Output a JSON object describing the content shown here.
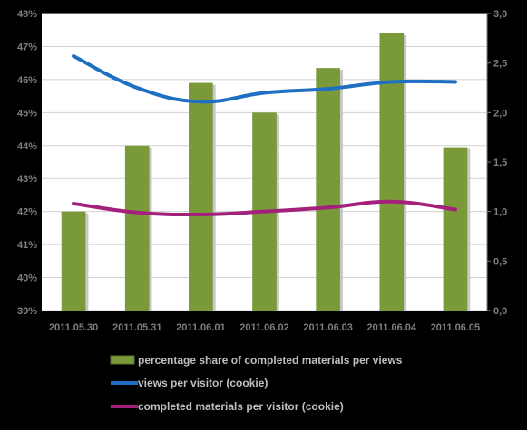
{
  "chart_data": {
    "type": "bar",
    "categories": [
      "2011.05.30",
      "2011.05.31",
      "2011.06.01",
      "2011.06.02",
      "2011.06.03",
      "2011.06.04",
      "2011.06.05"
    ],
    "left_axis": {
      "ylim": [
        39,
        48
      ],
      "ticks": [
        39,
        40,
        41,
        42,
        43,
        44,
        45,
        46,
        47,
        48
      ],
      "tick_labels": [
        "39%",
        "40%",
        "41%",
        "42%",
        "43%",
        "44%",
        "45%",
        "46%",
        "47%",
        "48%"
      ]
    },
    "right_axis": {
      "ylim": [
        0,
        3
      ],
      "ticks": [
        0,
        0.5,
        1,
        1.5,
        2,
        2.5,
        3
      ],
      "tick_labels": [
        "0,0",
        "0,5",
        "1,0",
        "1,5",
        "2,0",
        "2,5",
        "3,0"
      ]
    },
    "series": [
      {
        "name": "percentage share of completed materials per views",
        "type": "bar",
        "axis": "left",
        "color": "#7a9a3a",
        "values": [
          42.0,
          44.0,
          45.9,
          45.0,
          46.35,
          47.4,
          43.95
        ]
      },
      {
        "name": "views per visitor (cookie)",
        "type": "line",
        "axis": "right",
        "color": "#1f6fc4",
        "values": [
          2.57,
          2.25,
          2.11,
          2.2,
          2.24,
          2.31,
          2.31
        ]
      },
      {
        "name": "completed materials per visitor (cookie)",
        "type": "line",
        "axis": "right",
        "color": "#a3217a",
        "values": [
          1.08,
          0.99,
          0.97,
          1.0,
          1.04,
          1.1,
          1.02
        ]
      }
    ],
    "grid": true,
    "legend": "bottom"
  },
  "colors": {
    "background": "#000000",
    "plot_area": "#ffffff",
    "gridline": "#d0d0d0",
    "axis_text": "#7f7f7f",
    "legend_text": "#bfbfbf"
  }
}
